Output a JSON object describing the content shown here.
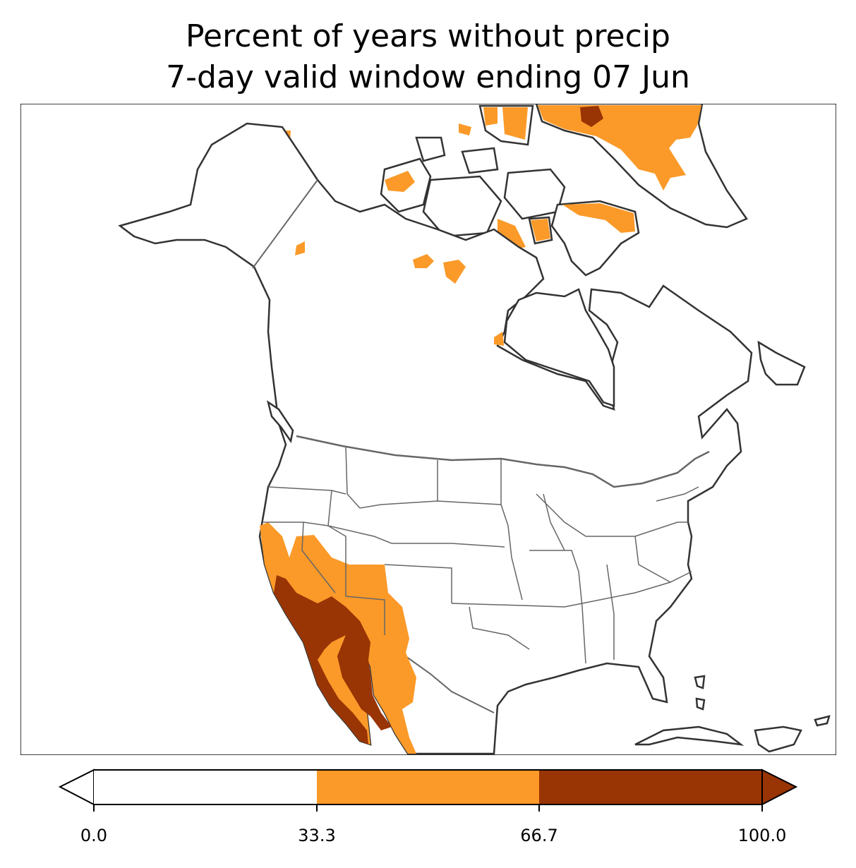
{
  "title": {
    "line1": "Percent of years without precip",
    "line2": "7-day valid window ending 07 Jun"
  },
  "colorbar": {
    "ticks": [
      "0.0",
      "33.3",
      "66.7",
      "100.0"
    ],
    "bins": [
      {
        "range": [
          0.0,
          33.3
        ],
        "color": "#ffffff"
      },
      {
        "range": [
          33.3,
          66.7
        ],
        "color": "#fb9a29"
      },
      {
        "range": [
          66.7,
          100.0
        ],
        "color": "#993404"
      }
    ],
    "extend": "both"
  },
  "map": {
    "region": "North America",
    "colors": {
      "low": "#ffffff",
      "mid": "#fb9a29",
      "high": "#993404",
      "coast": "#333333",
      "borders": "#666666"
    }
  }
}
